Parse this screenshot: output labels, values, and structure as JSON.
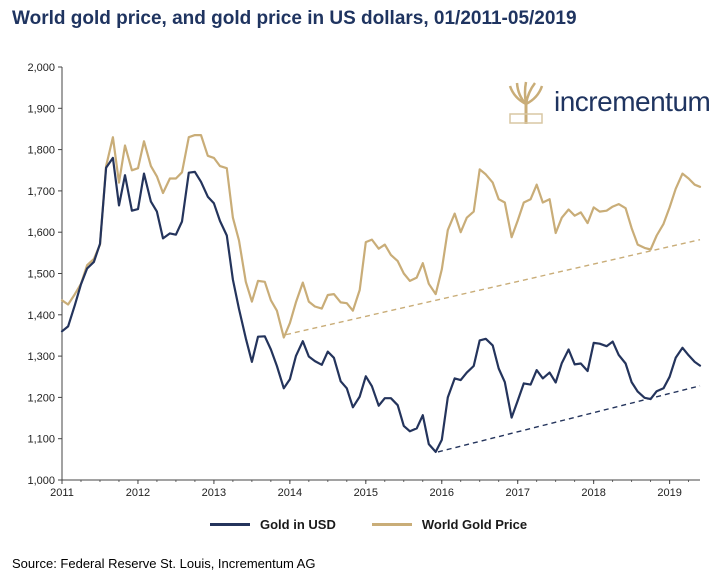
{
  "title": "World gold price, and gold price in US dollars, 01/2011-05/2019",
  "source": "Source: Federal Reserve St. Louis, Incrementum AG",
  "logo_text": "incrementum",
  "colors": {
    "usd": "#24345c",
    "world": "#c9ad78",
    "title": "#1f3460",
    "axis": "#444444"
  },
  "chart_data": {
    "type": "line",
    "title": "World gold price, and gold price in US dollars, 01/2011-05/2019",
    "xlabel": "",
    "ylabel": "",
    "xlim": [
      2011.0,
      2019.4
    ],
    "ylim": [
      1000,
      2000
    ],
    "yticks": [
      1000,
      1100,
      1200,
      1300,
      1400,
      1500,
      1600,
      1700,
      1800,
      1900,
      2000
    ],
    "ytick_labels": [
      "1,000",
      "1,100",
      "1,200",
      "1,300",
      "1,400",
      "1,500",
      "1,600",
      "1,700",
      "1,800",
      "1,900",
      "2,000"
    ],
    "xticks": [
      2011,
      2012,
      2013,
      2014,
      2015,
      2016,
      2017,
      2018,
      2019
    ],
    "xtick_labels": [
      "2011",
      "2012",
      "2013",
      "2014",
      "2015",
      "2016",
      "2017",
      "2018",
      "2019"
    ],
    "grid": false,
    "legend_position": "bottom",
    "series": [
      {
        "name": "Gold in USD",
        "color": "#24345c",
        "x": [
          2011.0,
          2011.08,
          2011.17,
          2011.25,
          2011.33,
          2011.42,
          2011.5,
          2011.58,
          2011.67,
          2011.75,
          2011.83,
          2011.92,
          2012.0,
          2012.08,
          2012.17,
          2012.25,
          2012.33,
          2012.42,
          2012.5,
          2012.58,
          2012.67,
          2012.75,
          2012.83,
          2012.92,
          2013.0,
          2013.08,
          2013.17,
          2013.25,
          2013.33,
          2013.42,
          2013.5,
          2013.58,
          2013.67,
          2013.75,
          2013.83,
          2013.92,
          2014.0,
          2014.08,
          2014.17,
          2014.25,
          2014.33,
          2014.42,
          2014.5,
          2014.58,
          2014.67,
          2014.75,
          2014.83,
          2014.92,
          2015.0,
          2015.08,
          2015.17,
          2015.25,
          2015.33,
          2015.42,
          2015.5,
          2015.58,
          2015.67,
          2015.75,
          2015.83,
          2015.92,
          2016.0,
          2016.08,
          2016.17,
          2016.25,
          2016.33,
          2016.42,
          2016.5,
          2016.58,
          2016.67,
          2016.75,
          2016.83,
          2016.92,
          2017.0,
          2017.08,
          2017.17,
          2017.25,
          2017.33,
          2017.42,
          2017.5,
          2017.58,
          2017.67,
          2017.75,
          2017.83,
          2017.92,
          2018.0,
          2018.08,
          2018.17,
          2018.25,
          2018.33,
          2018.42,
          2018.5,
          2018.58,
          2018.67,
          2018.75,
          2018.83,
          2018.92,
          2019.0,
          2019.08,
          2019.17,
          2019.25,
          2019.33,
          2019.4
        ],
        "values": [
          1360,
          1372,
          1424,
          1474,
          1512,
          1528,
          1572,
          1756,
          1780,
          1665,
          1738,
          1652,
          1656,
          1742,
          1674,
          1650,
          1585,
          1597,
          1594,
          1626,
          1744,
          1746,
          1722,
          1686,
          1670,
          1627,
          1592,
          1485,
          1414,
          1343,
          1286,
          1347,
          1348,
          1316,
          1276,
          1222,
          1244,
          1300,
          1336,
          1299,
          1288,
          1279,
          1311,
          1296,
          1239,
          1222,
          1176,
          1202,
          1251,
          1227,
          1180,
          1198,
          1198,
          1181,
          1131,
          1118,
          1125,
          1157,
          1087,
          1068,
          1097,
          1200,
          1246,
          1242,
          1260,
          1276,
          1338,
          1342,
          1326,
          1270,
          1237,
          1151,
          1192,
          1234,
          1231,
          1266,
          1246,
          1260,
          1236,
          1283,
          1316,
          1280,
          1282,
          1264,
          1332,
          1330,
          1324,
          1335,
          1303,
          1282,
          1237,
          1214,
          1199,
          1196,
          1215,
          1222,
          1250,
          1296,
          1320,
          1302,
          1286,
          1277
        ]
      },
      {
        "name": "World Gold Price",
        "color": "#c9ad78",
        "x": [
          2011.0,
          2011.08,
          2011.17,
          2011.25,
          2011.33,
          2011.42,
          2011.5,
          2011.58,
          2011.67,
          2011.75,
          2011.83,
          2011.92,
          2012.0,
          2012.08,
          2012.17,
          2012.25,
          2012.33,
          2012.42,
          2012.5,
          2012.58,
          2012.67,
          2012.75,
          2012.83,
          2012.92,
          2013.0,
          2013.08,
          2013.17,
          2013.25,
          2013.33,
          2013.42,
          2013.5,
          2013.58,
          2013.67,
          2013.75,
          2013.83,
          2013.92,
          2014.0,
          2014.08,
          2014.17,
          2014.25,
          2014.33,
          2014.42,
          2014.5,
          2014.58,
          2014.67,
          2014.75,
          2014.83,
          2014.92,
          2015.0,
          2015.08,
          2015.17,
          2015.25,
          2015.33,
          2015.42,
          2015.5,
          2015.58,
          2015.67,
          2015.75,
          2015.83,
          2015.92,
          2016.0,
          2016.08,
          2016.17,
          2016.25,
          2016.33,
          2016.42,
          2016.5,
          2016.58,
          2016.67,
          2016.75,
          2016.83,
          2016.92,
          2017.0,
          2017.08,
          2017.17,
          2017.25,
          2017.33,
          2017.42,
          2017.5,
          2017.58,
          2017.67,
          2017.75,
          2017.83,
          2017.92,
          2018.0,
          2018.08,
          2018.17,
          2018.25,
          2018.33,
          2018.42,
          2018.5,
          2018.58,
          2018.67,
          2018.75,
          2018.83,
          2018.92,
          2019.0,
          2019.08,
          2019.17,
          2019.25,
          2019.33,
          2019.4
        ],
        "values": [
          1435,
          1425,
          1450,
          1475,
          1520,
          1535,
          1570,
          1760,
          1830,
          1720,
          1810,
          1750,
          1755,
          1820,
          1760,
          1735,
          1695,
          1730,
          1730,
          1745,
          1830,
          1835,
          1835,
          1785,
          1780,
          1760,
          1755,
          1635,
          1580,
          1480,
          1432,
          1482,
          1480,
          1435,
          1410,
          1345,
          1380,
          1430,
          1478,
          1432,
          1420,
          1415,
          1448,
          1450,
          1430,
          1428,
          1410,
          1460,
          1576,
          1582,
          1560,
          1570,
          1545,
          1530,
          1500,
          1482,
          1490,
          1525,
          1475,
          1450,
          1510,
          1605,
          1645,
          1600,
          1635,
          1650,
          1752,
          1740,
          1720,
          1680,
          1672,
          1588,
          1628,
          1672,
          1680,
          1715,
          1672,
          1680,
          1598,
          1635,
          1655,
          1640,
          1648,
          1622,
          1660,
          1650,
          1652,
          1662,
          1668,
          1658,
          1610,
          1570,
          1562,
          1558,
          1592,
          1620,
          1660,
          1705,
          1742,
          1730,
          1715,
          1710
        ]
      }
    ],
    "trendlines": [
      {
        "series": "World Gold Price",
        "color": "#c9ad78",
        "x": [
          2013.95,
          2019.4
        ],
        "y": [
          1352,
          1582
        ]
      },
      {
        "series": "Gold in USD",
        "color": "#24345c",
        "x": [
          2015.95,
          2019.4
        ],
        "y": [
          1068,
          1228
        ]
      }
    ]
  }
}
